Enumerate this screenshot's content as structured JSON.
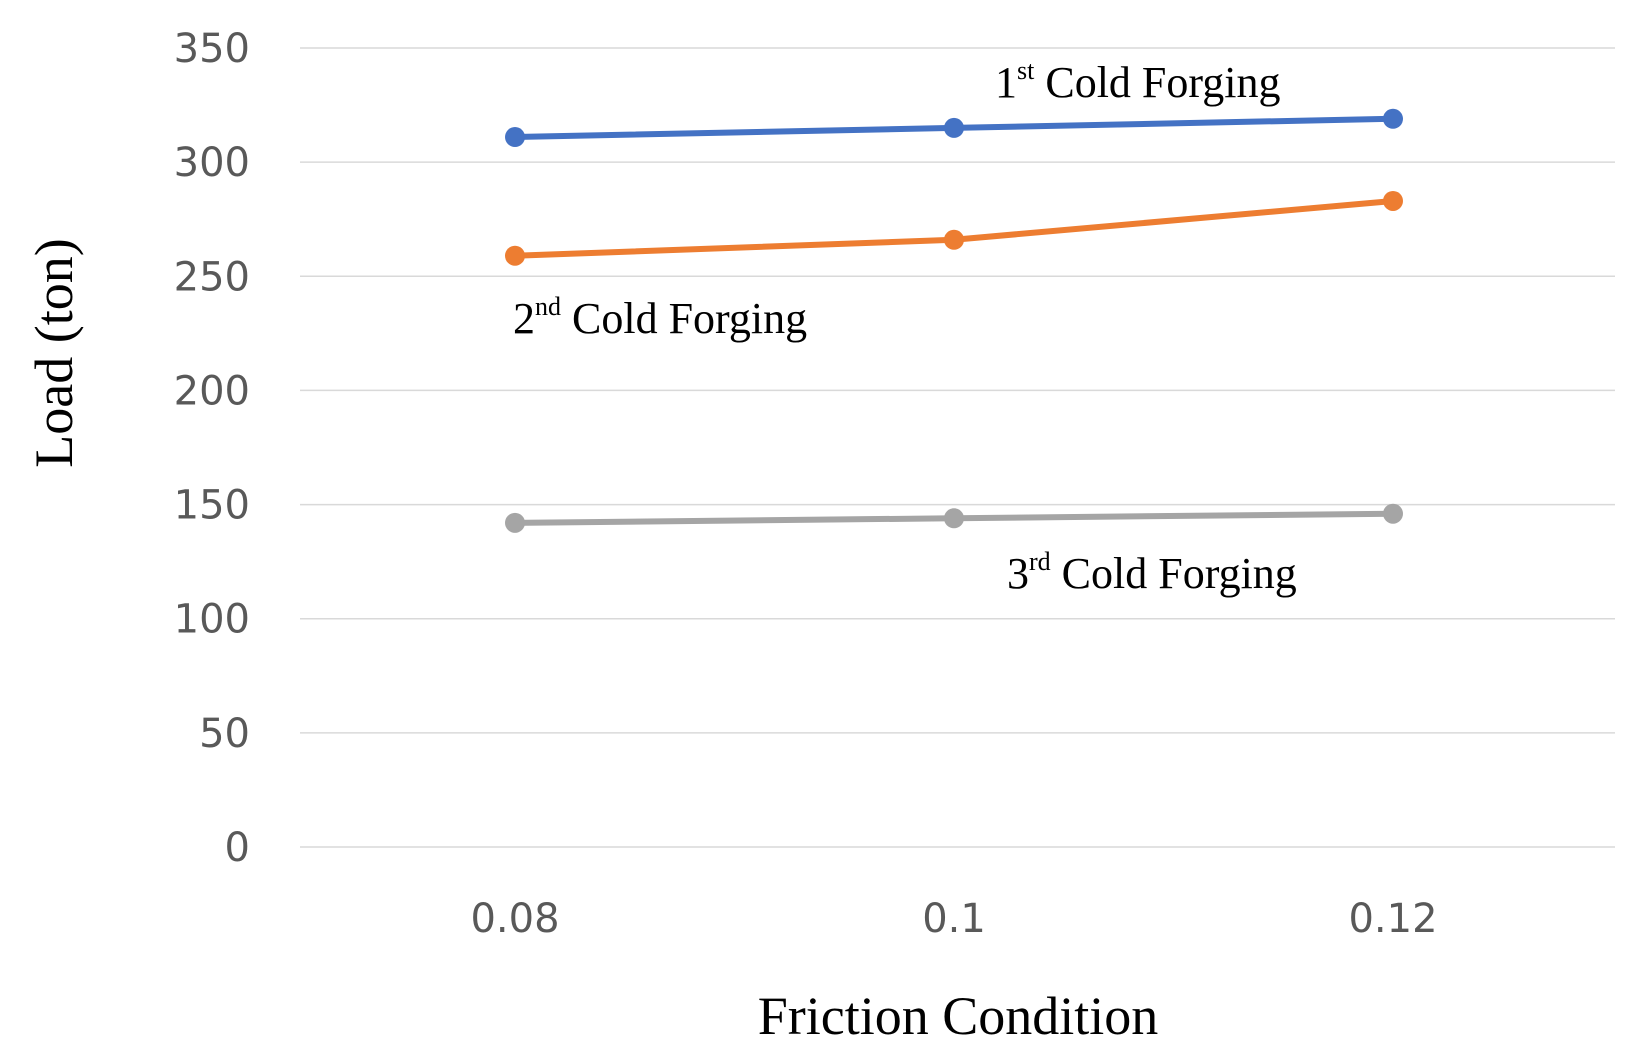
{
  "chart_data": {
    "type": "line",
    "title": "",
    "xlabel": "Friction Condition",
    "ylabel": "Load (ton)",
    "categories": [
      "0.08",
      "0.1",
      "0.12"
    ],
    "ylim": [
      0,
      350
    ],
    "yticks": [
      "0",
      "50",
      "100",
      "150",
      "200",
      "250",
      "300",
      "350"
    ],
    "grid": true,
    "legend": "none",
    "series": [
      {
        "name_prefix": "1",
        "name_suffix": "st",
        "name_rest": " Cold Forging",
        "values": [
          311,
          315,
          319
        ],
        "color": "#4472c4"
      },
      {
        "name_prefix": "2",
        "name_suffix": "nd",
        "name_rest": " Cold Forging",
        "values": [
          259,
          266,
          283
        ],
        "color": "#ed7d31"
      },
      {
        "name_prefix": "3",
        "name_suffix": "rd",
        "name_rest": " Cold Forging",
        "values": [
          142,
          144,
          146
        ],
        "color": "#a5a5a5"
      }
    ]
  }
}
